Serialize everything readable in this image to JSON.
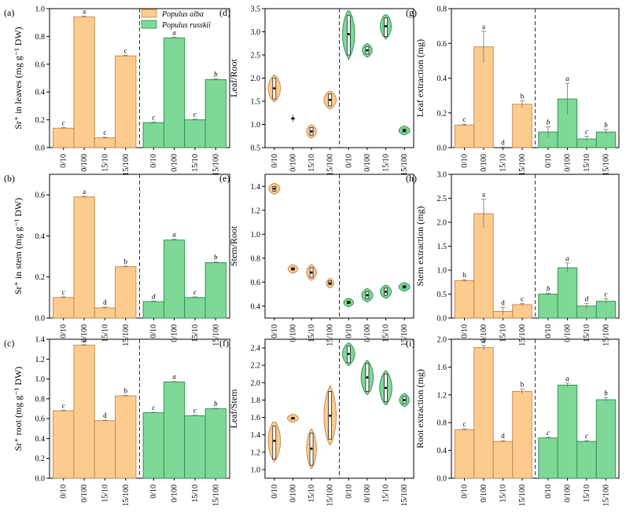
{
  "colors": {
    "alba": "#FDCB8E",
    "russkii": "#7ED898",
    "alba_edge": "#C0854A",
    "russkii_edge": "#2E8A50"
  },
  "legend": [
    {
      "key": "alba",
      "label": "Populus alba"
    },
    {
      "key": "russkii",
      "label": "Populus russkii"
    }
  ],
  "chart_data": [
    {
      "id": "a",
      "panel_label": "(a)",
      "type": "bar",
      "ylabel": "Sr⁺ in leaves (mg g⁻¹ DW)",
      "ylim": [
        0,
        1.0
      ],
      "yticks": [
        "0.0",
        "0.2",
        "0.4",
        "0.6",
        "0.8",
        "1.0"
      ],
      "categories": [
        "0/10",
        "0/100",
        "15/10",
        "15/100"
      ],
      "series": [
        {
          "name": "Populus alba",
          "key": "alba",
          "values": [
            0.14,
            0.94,
            0.07,
            0.66
          ],
          "errors": [
            0.005,
            0.005,
            0.005,
            0.005
          ],
          "letters": [
            "c",
            "a",
            "c",
            "c"
          ],
          "italic": false
        },
        {
          "name": "Populus russkii",
          "key": "russkii",
          "values": [
            0.18,
            0.79,
            0.2,
            0.49
          ],
          "errors": [
            0.005,
            0.005,
            0.005,
            0.005
          ],
          "letters": [
            "c",
            "a",
            "c",
            "b"
          ],
          "italic": true
        }
      ]
    },
    {
      "id": "b",
      "panel_label": "(b)",
      "type": "bar",
      "ylabel": "Sr⁺ in stem (mg g⁻¹ DW)",
      "ylim": [
        0,
        0.7
      ],
      "yticks": [
        "0.0",
        "0.2",
        "0.4",
        "0.6"
      ],
      "categories": [
        "0/10",
        "0/100",
        "15/10",
        "15/100"
      ],
      "series": [
        {
          "name": "Populus alba",
          "key": "alba",
          "values": [
            0.1,
            0.59,
            0.05,
            0.25
          ],
          "errors": [
            0.003,
            0.003,
            0.003,
            0.003
          ],
          "letters": [
            "c",
            "a",
            "d",
            "b"
          ],
          "italic": false
        },
        {
          "name": "Populus russkii",
          "key": "russkii",
          "values": [
            0.08,
            0.38,
            0.1,
            0.27
          ],
          "errors": [
            0.003,
            0.005,
            0.003,
            0.003
          ],
          "letters": [
            "d",
            "a",
            "c",
            "b"
          ],
          "italic": true
        }
      ]
    },
    {
      "id": "c",
      "panel_label": "(c)",
      "type": "bar",
      "ylabel": "Sr⁺ root (mg g⁻¹ DW)",
      "ylim": [
        0,
        1.4
      ],
      "yticks": [
        "0.0",
        "0.2",
        "0.4",
        "0.6",
        "0.8",
        "1.0",
        "1.2",
        "1.4"
      ],
      "categories": [
        "0/10",
        "0/100",
        "15/10",
        "15/100"
      ],
      "series": [
        {
          "name": "Populus alba",
          "key": "alba",
          "values": [
            0.68,
            1.34,
            0.58,
            0.83
          ],
          "errors": [
            0.005,
            0.005,
            0.005,
            0.005
          ],
          "letters": [
            "c",
            "a",
            "d",
            "b"
          ],
          "italic": false
        },
        {
          "name": "Populus russkii",
          "key": "russkii",
          "values": [
            0.66,
            0.97,
            0.63,
            0.7
          ],
          "errors": [
            0.005,
            0.005,
            0.005,
            0.005
          ],
          "letters": [
            "c",
            "a",
            "c",
            "b"
          ],
          "italic": true
        }
      ]
    },
    {
      "id": "d",
      "panel_label": "(d)",
      "type": "violin",
      "ylabel": "Leaf/Root",
      "ylim": [
        0.5,
        3.5
      ],
      "yticks": [
        "0.5",
        "1.0",
        "1.5",
        "2.0",
        "2.5",
        "3.0",
        "3.5"
      ],
      "categories": [
        "0/10",
        "0/100",
        "15/10",
        "15/100"
      ],
      "series": [
        {
          "name": "Populus alba",
          "key": "alba",
          "center": [
            1.78,
            1.13,
            0.85,
            1.53
          ],
          "low": [
            1.55,
            1.12,
            0.77,
            1.4
          ],
          "high": [
            2.0,
            1.14,
            0.93,
            1.66
          ],
          "spread": [
            1.0,
            0.05,
            0.8,
            1.0
          ]
        },
        {
          "name": "Populus russkii",
          "key": "russkii",
          "center": [
            2.95,
            2.6,
            3.12,
            0.87
          ],
          "low": [
            2.5,
            2.52,
            2.9,
            0.84
          ],
          "high": [
            3.35,
            2.68,
            3.3,
            0.9
          ],
          "spread": [
            1.0,
            0.8,
            0.9,
            0.9
          ]
        }
      ]
    },
    {
      "id": "e",
      "panel_label": "(e)",
      "type": "violin",
      "ylabel": "Stem/Root",
      "ylim": [
        0.3,
        1.5
      ],
      "yticks": [
        "0.4",
        "0.6",
        "0.8",
        "1.0",
        "1.2",
        "1.4"
      ],
      "categories": [
        "0/10",
        "0/100",
        "15/10",
        "15/100"
      ],
      "series": [
        {
          "name": "Populus alba",
          "key": "alba",
          "center": [
            1.38,
            0.71,
            0.68,
            0.59
          ],
          "low": [
            1.36,
            0.7,
            0.64,
            0.58
          ],
          "high": [
            1.4,
            0.72,
            0.72,
            0.61
          ],
          "spread": [
            0.9,
            0.8,
            0.8,
            0.6
          ]
        },
        {
          "name": "Populus russkii",
          "key": "russkii",
          "center": [
            0.43,
            0.49,
            0.52,
            0.56
          ],
          "low": [
            0.42,
            0.46,
            0.49,
            0.55
          ],
          "high": [
            0.44,
            0.52,
            0.55,
            0.57
          ],
          "spread": [
            0.8,
            0.9,
            0.9,
            0.9
          ]
        }
      ]
    },
    {
      "id": "f",
      "panel_label": "(f)",
      "type": "violin",
      "ylabel": "Leaf/Stem",
      "ylim": [
        0.9,
        2.5
      ],
      "yticks": [
        "1.0",
        "1.2",
        "1.4",
        "1.6",
        "1.8",
        "2.0",
        "2.2",
        "2.4"
      ],
      "categories": [
        "0/10",
        "0/100",
        "15/10",
        "15/100"
      ],
      "series": [
        {
          "name": "Populus alba",
          "key": "alba",
          "center": [
            1.33,
            1.59,
            1.24,
            1.62
          ],
          "low": [
            1.12,
            1.58,
            1.05,
            1.35
          ],
          "high": [
            1.5,
            1.6,
            1.42,
            1.9
          ],
          "spread": [
            1.0,
            0.9,
            0.8,
            1.0
          ]
        },
        {
          "name": "Populus russkii",
          "key": "russkii",
          "center": [
            2.33,
            2.06,
            1.94,
            1.8
          ],
          "low": [
            2.23,
            1.9,
            1.78,
            1.76
          ],
          "high": [
            2.42,
            2.22,
            2.1,
            1.84
          ],
          "spread": [
            1.0,
            1.0,
            1.0,
            0.8
          ]
        }
      ]
    },
    {
      "id": "g",
      "panel_label": "(g)",
      "type": "bar",
      "ylabel": "Leaf extraction (mg)",
      "ylim": [
        0,
        0.8
      ],
      "yticks": [
        "0.0",
        "0.2",
        "0.4",
        "0.6",
        "0.8"
      ],
      "categories": [
        "0/10",
        "0/100",
        "15/10",
        "15/100"
      ],
      "series": [
        {
          "name": "Populus alba",
          "key": "alba",
          "values": [
            0.13,
            0.58,
            0.0,
            0.25
          ],
          "errors": [
            0.005,
            0.09,
            0.003,
            0.02
          ],
          "letters": [
            "c",
            "a",
            "d",
            "b"
          ],
          "italic": false
        },
        {
          "name": "Populus russkii",
          "key": "russkii",
          "values": [
            0.09,
            0.28,
            0.05,
            0.09
          ],
          "errors": [
            0.03,
            0.09,
            0.015,
            0.015
          ],
          "letters": [
            "b",
            "a",
            "c",
            "b"
          ],
          "italic": true
        }
      ]
    },
    {
      "id": "h",
      "panel_label": "(h)",
      "type": "bar",
      "ylabel": "Stem extraction (mg)",
      "ylim": [
        0,
        3.0
      ],
      "yticks": [
        "0.0",
        "0.5",
        "1.0",
        "1.5",
        "2.0",
        "2.5",
        "3.0"
      ],
      "categories": [
        "0/10",
        "0/100",
        "15/10",
        "15/100"
      ],
      "series": [
        {
          "name": "Populus alba",
          "key": "alba",
          "values": [
            0.78,
            2.18,
            0.14,
            0.28
          ],
          "errors": [
            0.02,
            0.3,
            0.08,
            0.02
          ],
          "letters": [
            "b",
            "a",
            "d",
            "c"
          ],
          "italic": false
        },
        {
          "name": "Populus russkii",
          "key": "russkii",
          "values": [
            0.5,
            1.05,
            0.25,
            0.35
          ],
          "errors": [
            0.02,
            0.1,
            0.05,
            0.05
          ],
          "letters": [
            "b",
            "a",
            "d",
            "c"
          ],
          "italic": true
        }
      ]
    },
    {
      "id": "i",
      "panel_label": "(i)",
      "type": "bar",
      "ylabel": "Root extraction (mg)",
      "ylim": [
        0,
        2.0
      ],
      "yticks": [
        "0.0",
        "0.4",
        "0.8",
        "1.2",
        "1.6",
        "2.0"
      ],
      "categories": [
        "0/10",
        "0/100",
        "15/10",
        "15/100"
      ],
      "series": [
        {
          "name": "Populus alba",
          "key": "alba",
          "values": [
            0.7,
            1.88,
            0.53,
            1.25
          ],
          "errors": [
            0.01,
            0.03,
            0.01,
            0.03
          ],
          "letters": [
            "c",
            "a",
            "d",
            "b"
          ],
          "italic": false
        },
        {
          "name": "Populus russkii",
          "key": "russkii",
          "values": [
            0.58,
            1.34,
            0.53,
            1.13
          ],
          "errors": [
            0.01,
            0.03,
            0.01,
            0.03
          ],
          "letters": [
            "c",
            "a",
            "c",
            "b"
          ],
          "italic": true
        }
      ]
    }
  ]
}
